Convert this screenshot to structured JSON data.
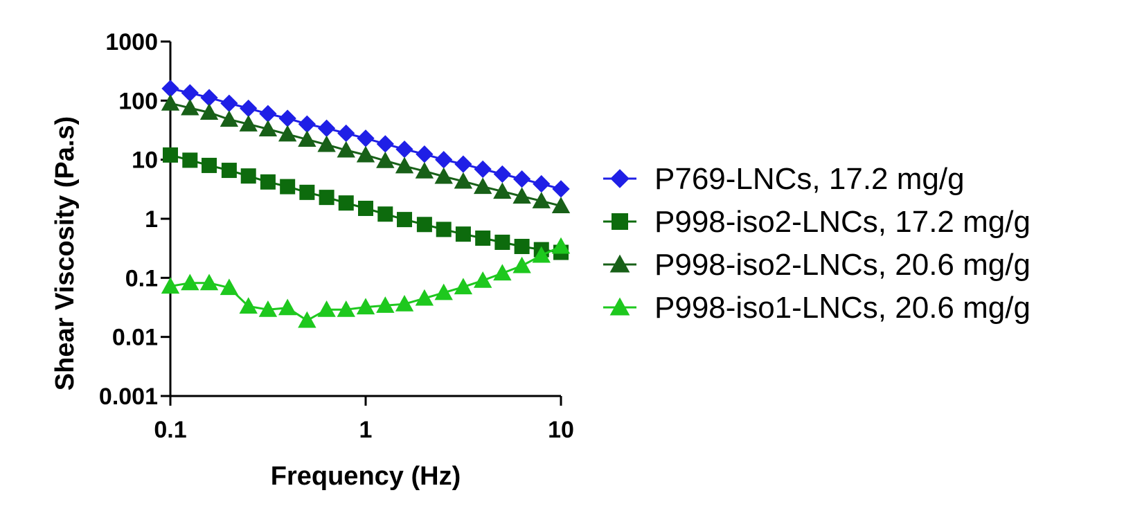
{
  "chart_data": {
    "type": "line",
    "title": "",
    "xlabel": "Frequency (Hz)",
    "ylabel": "Shear Viscosity (Pa.s)",
    "xscale": "log",
    "yscale": "log",
    "xlim": [
      0.1,
      10
    ],
    "ylim": [
      0.001,
      1000
    ],
    "x_ticks": [
      {
        "value": 0.1,
        "label": "0.1"
      },
      {
        "value": 1,
        "label": "1"
      },
      {
        "value": 10,
        "label": "10"
      }
    ],
    "y_ticks": [
      {
        "value": 0.001,
        "label": "0.001"
      },
      {
        "value": 0.01,
        "label": "0.01"
      },
      {
        "value": 0.1,
        "label": "0.1"
      },
      {
        "value": 1,
        "label": "1"
      },
      {
        "value": 10,
        "label": "10"
      },
      {
        "value": 100,
        "label": "100"
      },
      {
        "value": 1000,
        "label": "1000"
      }
    ],
    "grid": false,
    "legend_position": "right",
    "x": [
      0.1,
      0.126,
      0.158,
      0.2,
      0.251,
      0.316,
      0.398,
      0.501,
      0.631,
      0.794,
      1,
      1.26,
      1.58,
      2,
      2.51,
      3.16,
      3.98,
      5.01,
      6.31,
      7.94,
      10
    ],
    "series": [
      {
        "name": "P769-LNCs, 17.2 mg/g",
        "color": "#1f1fe6",
        "marker": "diamond",
        "values": [
          160,
          135,
          112,
          90,
          74,
          60,
          50,
          40,
          34,
          28,
          23,
          18.5,
          15,
          12.4,
          10,
          8.4,
          6.9,
          5.7,
          4.7,
          3.9,
          3.2
        ]
      },
      {
        "name": "P998-iso2-LNCs, 17.2 mg/g",
        "color": "#0d6b0d",
        "marker": "square",
        "values": [
          12,
          9.8,
          8,
          6.6,
          5.3,
          4.2,
          3.5,
          2.8,
          2.3,
          1.85,
          1.5,
          1.2,
          0.97,
          0.8,
          0.66,
          0.55,
          0.47,
          0.4,
          0.34,
          0.3,
          0.27
        ]
      },
      {
        "name": "P998-iso2-LNCs, 20.6 mg/g",
        "color": "#186018",
        "marker": "triangle",
        "values": [
          90,
          75,
          63,
          48,
          40,
          33,
          27,
          22,
          18,
          14.5,
          12,
          9.6,
          7.8,
          6.4,
          5.2,
          4.3,
          3.5,
          2.9,
          2.4,
          2,
          1.65
        ]
      },
      {
        "name": "P998-iso1-LNCs, 20.6 mg/g",
        "color": "#1ec81e",
        "marker": "triangle",
        "values": [
          0.072,
          0.082,
          0.082,
          0.068,
          0.033,
          0.029,
          0.031,
          0.019,
          0.029,
          0.029,
          0.032,
          0.034,
          0.036,
          0.045,
          0.056,
          0.07,
          0.09,
          0.12,
          0.16,
          0.24,
          0.34
        ]
      }
    ]
  }
}
